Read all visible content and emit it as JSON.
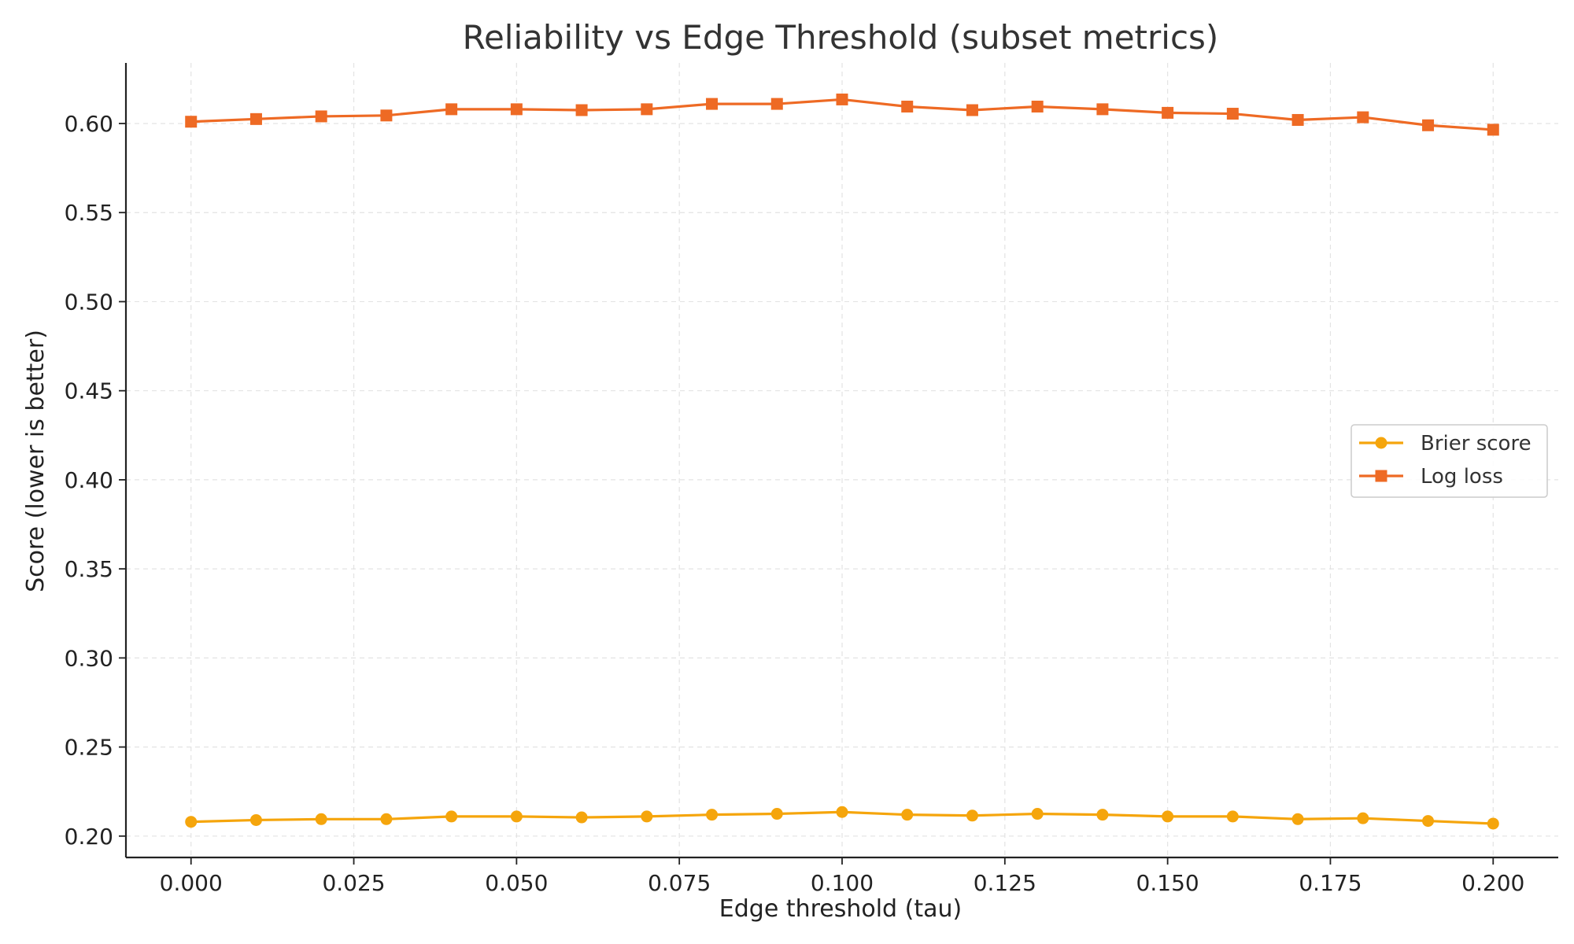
{
  "chart_data": {
    "type": "line",
    "title": "Reliability vs Edge Threshold (subset metrics)",
    "xlabel": "Edge threshold (tau)",
    "ylabel": "Score (lower is better)",
    "xlim": [
      -0.01,
      0.21
    ],
    "ylim": [
      0.188,
      0.634
    ],
    "x": [
      0.0,
      0.01,
      0.02,
      0.03,
      0.04,
      0.05,
      0.06,
      0.07,
      0.08,
      0.09,
      0.1,
      0.11,
      0.12,
      0.13,
      0.14,
      0.15,
      0.16,
      0.17,
      0.18,
      0.19,
      0.2
    ],
    "x_ticks": [
      0.0,
      0.025,
      0.05,
      0.075,
      0.1,
      0.125,
      0.15,
      0.175,
      0.2
    ],
    "x_tick_labels": [
      "0.000",
      "0.025",
      "0.050",
      "0.075",
      "0.100",
      "0.125",
      "0.150",
      "0.175",
      "0.200"
    ],
    "y_ticks": [
      0.2,
      0.25,
      0.3,
      0.35,
      0.4,
      0.45,
      0.5,
      0.55,
      0.6
    ],
    "y_tick_labels": [
      "0.20",
      "0.25",
      "0.30",
      "0.35",
      "0.40",
      "0.45",
      "0.50",
      "0.55",
      "0.60"
    ],
    "grid": true,
    "legend_position": "right",
    "series": [
      {
        "name": "Brier score",
        "color": "#F5A50C",
        "marker": "circle",
        "values": [
          0.208,
          0.209,
          0.2095,
          0.2095,
          0.211,
          0.211,
          0.2105,
          0.211,
          0.212,
          0.2125,
          0.2135,
          0.212,
          0.2115,
          0.2125,
          0.212,
          0.211,
          0.211,
          0.2095,
          0.21,
          0.2085,
          0.207
        ]
      },
      {
        "name": "Log loss",
        "color": "#EE6A24",
        "marker": "square",
        "values": [
          0.601,
          0.6025,
          0.604,
          0.6045,
          0.608,
          0.608,
          0.6075,
          0.608,
          0.611,
          0.611,
          0.6135,
          0.6095,
          0.6075,
          0.6095,
          0.608,
          0.606,
          0.6055,
          0.602,
          0.6035,
          0.599,
          0.5965
        ]
      }
    ]
  }
}
